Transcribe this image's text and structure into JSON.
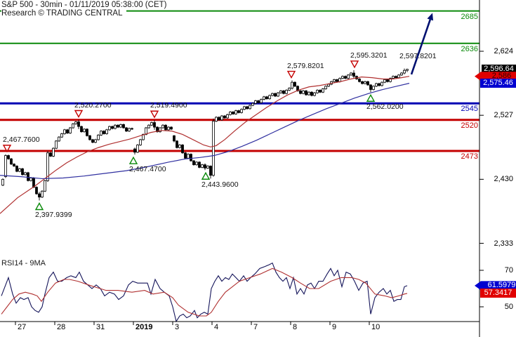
{
  "header": {
    "title": "S&P 500 - 30min - 01/11/2019 05:38:00 (CET)",
    "watermark": "Research © TRADING CENTRAL"
  },
  "rsi": {
    "title": "RSI14 - 9MA"
  },
  "colors": {
    "resistance_green": "#0b8a0b",
    "pivot_blue": "#0000b4",
    "support_red": "#c40000",
    "ma_fast_red": "#b03030",
    "ma_slow_blue": "#3030a0",
    "rsi_line_navy": "#14145a",
    "rsi_ma_red": "#b03030",
    "arrow_navy": "#001070",
    "candle_up_fill": "#ffffff",
    "candle_down_fill": "#000000",
    "badge_black": "#000000",
    "badge_red": "#e00000",
    "badge_blue": "#0000d0"
  },
  "axis": {
    "y_ticks": [
      {
        "label": "2,624",
        "value": 2624
      },
      {
        "label": "2,527",
        "value": 2527
      },
      {
        "label": "2,430",
        "value": 2430
      },
      {
        "label": "2,333",
        "value": 2333
      }
    ],
    "rsi_ticks": [
      {
        "label": "70",
        "value": 70
      },
      {
        "label": "50",
        "value": 50
      }
    ],
    "x_ticks": [
      {
        "label": "27",
        "x": 22
      },
      {
        "label": "28",
        "x": 78
      },
      {
        "label": "31",
        "x": 134
      },
      {
        "label": "2019",
        "x": 190,
        "bold": true
      },
      {
        "label": "3",
        "x": 246
      },
      {
        "label": "4",
        "x": 302
      },
      {
        "label": "7",
        "x": 358
      },
      {
        "label": "8",
        "x": 414
      },
      {
        "label": "9",
        "x": 470
      },
      {
        "label": "10",
        "x": 526
      }
    ]
  },
  "badges": {
    "price": [
      {
        "name": "last-price",
        "label": "2,596.64",
        "value": 2596.64,
        "bg": "#000000",
        "fg": "#ffffff",
        "pointer": false
      },
      {
        "name": "fast-ma-price",
        "label": "2,586",
        "value": 2586,
        "bg": "#e00000",
        "fg": "#2a0000",
        "pointer": true
      },
      {
        "name": "slow-ma-price",
        "label": "2,575.46",
        "value": 2575.46,
        "bg": "#0000d0",
        "fg": "#ffffff",
        "pointer": false
      }
    ],
    "rsi": [
      {
        "name": "rsi-value",
        "label": "61.5979",
        "value": 61.5979,
        "bg": "#0000d0",
        "fg": "#ffffff",
        "pointer": true
      },
      {
        "name": "rsi-ma-value",
        "label": "57.3417",
        "value": 57.3417,
        "bg": "#e00000",
        "fg": "#ffffff",
        "pointer": false
      }
    ]
  },
  "chart_data": {
    "type": "candlestick",
    "instrument": "S&P 500",
    "timeframe": "30min",
    "timestamp": "01/11/2019 05:38:00 (CET)",
    "price_axis": {
      "ticks": [
        2624,
        2527,
        2430,
        2333
      ],
      "visible_range": [
        2330,
        2700
      ]
    },
    "levels": [
      {
        "price": 2685,
        "label": "2685",
        "color": "#0b8a0b",
        "width": 2,
        "role": "resistance"
      },
      {
        "price": 2636,
        "label": "2636",
        "color": "#0b8a0b",
        "width": 2,
        "role": "resistance"
      },
      {
        "price": 2545,
        "label": "2545",
        "color": "#0000b4",
        "width": 3,
        "role": "pivot"
      },
      {
        "price": 2520,
        "label": "2520",
        "color": "#c40000",
        "width": 3,
        "role": "support"
      },
      {
        "price": 2473,
        "label": "2473",
        "color": "#c40000",
        "width": 3,
        "role": "support"
      }
    ],
    "candles": {
      "x0": 4,
      "pitch": 4,
      "first_open": 2421,
      "closes": [
        2430,
        2466,
        2461,
        2453,
        2450,
        2442,
        2446,
        2437,
        2440,
        2428,
        2432,
        2418,
        2408,
        2403,
        2412,
        2428,
        2470,
        2465,
        2477,
        2488,
        2494,
        2499,
        2505,
        2500,
        2508,
        2514,
        2517,
        2510,
        2502,
        2506,
        2496,
        2490,
        2486,
        2490,
        2497,
        2503,
        2499,
        2505,
        2510,
        2507,
        2512,
        2509,
        2513,
        2508,
        2503,
        2507,
        2506,
        2471,
        2482,
        2490,
        2498,
        2508,
        2512,
        2516,
        2509,
        2502,
        2508,
        2512,
        2505,
        2509,
        2506,
        2488,
        2478,
        2482,
        2470,
        2462,
        2468,
        2458,
        2452,
        2456,
        2448,
        2452,
        2447,
        2450,
        2436,
        2518,
        2524,
        2520,
        2526,
        2523,
        2528,
        2532,
        2529,
        2534,
        2531,
        2536,
        2540,
        2537,
        2542,
        2545,
        2549,
        2546,
        2551,
        2555,
        2552,
        2557,
        2560,
        2556,
        2561,
        2564,
        2560,
        2565,
        2568,
        2577,
        2571,
        2564,
        2560,
        2564,
        2558,
        2562,
        2557,
        2561,
        2565,
        2562,
        2567,
        2571,
        2574,
        2578,
        2581,
        2578,
        2583,
        2586,
        2583,
        2588,
        2591,
        2586,
        2582,
        2578,
        2575,
        2578,
        2573,
        2566,
        2571,
        2575,
        2572,
        2577,
        2581,
        2578,
        2583,
        2586,
        2584,
        2588,
        2591,
        2595,
        2596.64
      ],
      "special": {
        "1": [
          2434,
          2467.76,
          2432,
          2466
        ],
        "13": [
          2408,
          2411,
          2397.94,
          2403
        ],
        "16": [
          2428,
          2473,
          2426,
          2470
        ],
        "27": [
          2517,
          2520.27,
          2506,
          2510
        ],
        "47": [
          2476,
          2478,
          2467.47,
          2471
        ],
        "54": [
          2516,
          2519.49,
          2505,
          2509
        ],
        "61": [
          2496,
          2497,
          2486,
          2488
        ],
        "72": [
          2452,
          2454,
          2443.96,
          2447
        ],
        "74": [
          2450,
          2451,
          2431,
          2436
        ],
        "75": [
          2436,
          2522,
          2434,
          2518
        ],
        "103": [
          2568,
          2579.82,
          2566,
          2577
        ],
        "125": [
          2591,
          2595.32,
          2583,
          2586
        ],
        "131": [
          2573,
          2574,
          2562.02,
          2566
        ],
        "143": [
          2591,
          2597.82,
          2589,
          2595
        ],
        "144": [
          2595,
          2597.5,
          2592.5,
          2596.64
        ]
      }
    },
    "ma_fast": [
      [
        0,
        2378
      ],
      [
        25,
        2402
      ],
      [
        50,
        2420
      ],
      [
        65,
        2432
      ],
      [
        80,
        2444
      ],
      [
        95,
        2455
      ],
      [
        110,
        2464
      ],
      [
        125,
        2472
      ],
      [
        140,
        2478
      ],
      [
        155,
        2483
      ],
      [
        170,
        2487
      ],
      [
        185,
        2491
      ],
      [
        200,
        2496
      ],
      [
        215,
        2501
      ],
      [
        230,
        2504
      ],
      [
        245,
        2503
      ],
      [
        260,
        2498
      ],
      [
        275,
        2490
      ],
      [
        290,
        2482
      ],
      [
        300,
        2479
      ],
      [
        308,
        2481
      ],
      [
        320,
        2490
      ],
      [
        335,
        2504
      ],
      [
        350,
        2517
      ],
      [
        365,
        2528
      ],
      [
        380,
        2539
      ],
      [
        395,
        2549
      ],
      [
        410,
        2558
      ],
      [
        425,
        2565
      ],
      [
        440,
        2570
      ],
      [
        455,
        2572
      ],
      [
        470,
        2575
      ],
      [
        485,
        2578
      ],
      [
        500,
        2582
      ],
      [
        515,
        2585
      ],
      [
        530,
        2584
      ],
      [
        545,
        2582
      ],
      [
        560,
        2582
      ],
      [
        572,
        2584
      ],
      [
        583,
        2586
      ]
    ],
    "ma_slow": [
      [
        0,
        2436
      ],
      [
        30,
        2434
      ],
      [
        60,
        2431
      ],
      [
        90,
        2432
      ],
      [
        120,
        2435
      ],
      [
        150,
        2439
      ],
      [
        180,
        2443
      ],
      [
        210,
        2449
      ],
      [
        240,
        2456
      ],
      [
        265,
        2461
      ],
      [
        285,
        2463
      ],
      [
        305,
        2466
      ],
      [
        325,
        2472
      ],
      [
        345,
        2480
      ],
      [
        365,
        2489
      ],
      [
        385,
        2499
      ],
      [
        405,
        2509
      ],
      [
        425,
        2519
      ],
      [
        445,
        2528
      ],
      [
        465,
        2537
      ],
      [
        485,
        2545
      ],
      [
        505,
        2553
      ],
      [
        525,
        2560
      ],
      [
        545,
        2566
      ],
      [
        565,
        2571
      ],
      [
        583,
        2575.46
      ]
    ],
    "markers": [
      {
        "label": "2,467.7600",
        "x": 10,
        "price": 2467.76,
        "dir": "down"
      },
      {
        "label": "2,520.2700",
        "x": 112,
        "price": 2520.27,
        "dir": "down"
      },
      {
        "label": "2,519.4900",
        "x": 220,
        "price": 2519.49,
        "dir": "down"
      },
      {
        "label": "2,579.8201",
        "x": 415,
        "price": 2579.82,
        "dir": "down"
      },
      {
        "label": "2,595.3201",
        "x": 505,
        "price": 2595.32,
        "dir": "down"
      },
      {
        "label": "2,397.9399",
        "x": 56,
        "price": 2397.94,
        "dir": "up"
      },
      {
        "label": "2,467.4700",
        "x": 190,
        "price": 2467.47,
        "dir": "up"
      },
      {
        "label": "2,443.9600",
        "x": 293,
        "price": 2443.96,
        "dir": "up"
      },
      {
        "label": "2,562.0200",
        "x": 528,
        "price": 2562.02,
        "dir": "up"
      },
      {
        "label": "2,597.8201",
        "x": 575,
        "price": 2597.82,
        "dir": "label"
      }
    ],
    "forecast_arrow": {
      "from": {
        "x": 586,
        "price": 2589
      },
      "to": {
        "x": 616,
        "price": 2682
      }
    },
    "rsi_pane": {
      "last": 61.5979,
      "ma_last": 57.3417,
      "line": [
        [
          2,
          56
        ],
        [
          8,
          62
        ],
        [
          12,
          66
        ],
        [
          18,
          57
        ],
        [
          23,
          52
        ],
        [
          29,
          55
        ],
        [
          34,
          54
        ],
        [
          40,
          55
        ],
        [
          45,
          50
        ],
        [
          50,
          48
        ],
        [
          55,
          47
        ],
        [
          60,
          50
        ],
        [
          64,
          57
        ],
        [
          70,
          66
        ],
        [
          76,
          69
        ],
        [
          82,
          64
        ],
        [
          88,
          64
        ],
        [
          95,
          66
        ],
        [
          101,
          67
        ],
        [
          108,
          66
        ],
        [
          113,
          69
        ],
        [
          119,
          64
        ],
        [
          125,
          62
        ],
        [
          131,
          60
        ],
        [
          137,
          62
        ],
        [
          143,
          60
        ],
        [
          149,
          56
        ],
        [
          156,
          58
        ],
        [
          163,
          57
        ],
        [
          169,
          54
        ],
        [
          176,
          56
        ],
        [
          183,
          62
        ],
        [
          189,
          64
        ],
        [
          196,
          63
        ],
        [
          203,
          63
        ],
        [
          210,
          63
        ],
        [
          215,
          57
        ],
        [
          221,
          65
        ],
        [
          228,
          60
        ],
        [
          234,
          58
        ],
        [
          241,
          56
        ],
        [
          246,
          50
        ],
        [
          251,
          42
        ],
        [
          256,
          45
        ],
        [
          261,
          46
        ],
        [
          266,
          44
        ],
        [
          271,
          45
        ],
        [
          277,
          48
        ],
        [
          281,
          44
        ],
        [
          286,
          46
        ],
        [
          291,
          47
        ],
        [
          296,
          46
        ],
        [
          301,
          60
        ],
        [
          306,
          64
        ],
        [
          311,
          67
        ],
        [
          316,
          64
        ],
        [
          321,
          66
        ],
        [
          326,
          65
        ],
        [
          331,
          68
        ],
        [
          336,
          66
        ],
        [
          341,
          64
        ],
        [
          347,
          67
        ],
        [
          352,
          64
        ],
        [
          357,
          66
        ],
        [
          363,
          68
        ],
        [
          370,
          71
        ],
        [
          377,
          72
        ],
        [
          383,
          73
        ],
        [
          388,
          74
        ],
        [
          393,
          69
        ],
        [
          398,
          66
        ],
        [
          403,
          64
        ],
        [
          408,
          66
        ],
        [
          413,
          60
        ],
        [
          418,
          66
        ],
        [
          423,
          57
        ],
        [
          428,
          60
        ],
        [
          433,
          57
        ],
        [
          438,
          62
        ],
        [
          443,
          63
        ],
        [
          448,
          60
        ],
        [
          454,
          64
        ],
        [
          460,
          64
        ],
        [
          466,
          68
        ],
        [
          471,
          71
        ],
        [
          476,
          67
        ],
        [
          481,
          70
        ],
        [
          487,
          61
        ],
        [
          493,
          69
        ],
        [
          499,
          68
        ],
        [
          505,
          64
        ],
        [
          511,
          59
        ],
        [
          517,
          63
        ],
        [
          523,
          64
        ],
        [
          528,
          46
        ],
        [
          534,
          55
        ],
        [
          540,
          58
        ],
        [
          546,
          60
        ],
        [
          551,
          57
        ],
        [
          556,
          59
        ],
        [
          561,
          53
        ],
        [
          566,
          54
        ],
        [
          571,
          54
        ],
        [
          576,
          61
        ],
        [
          580,
          61.6
        ]
      ],
      "ma": [
        [
          2,
          46
        ],
        [
          10,
          50
        ],
        [
          18,
          54
        ],
        [
          27,
          57
        ],
        [
          36,
          58
        ],
        [
          46,
          57
        ],
        [
          53,
          56
        ],
        [
          59,
          53
        ],
        [
          68,
          58
        ],
        [
          79,
          63
        ],
        [
          91,
          65
        ],
        [
          99,
          65
        ],
        [
          111,
          64
        ],
        [
          126,
          62
        ],
        [
          134,
          61
        ],
        [
          151,
          59
        ],
        [
          168,
          59
        ],
        [
          188,
          58
        ],
        [
          206,
          59
        ],
        [
          218,
          57
        ],
        [
          234,
          58
        ],
        [
          246,
          55
        ],
        [
          254,
          51
        ],
        [
          268,
          47
        ],
        [
          284,
          45
        ],
        [
          294,
          45
        ],
        [
          301,
          47
        ],
        [
          311,
          53
        ],
        [
          321,
          58
        ],
        [
          331,
          61
        ],
        [
          341,
          64
        ],
        [
          356,
          66
        ],
        [
          371,
          68
        ],
        [
          388,
          71
        ],
        [
          401,
          69
        ],
        [
          416,
          66
        ],
        [
          428,
          63
        ],
        [
          441,
          60
        ],
        [
          454,
          60
        ],
        [
          471,
          64
        ],
        [
          486,
          66
        ],
        [
          501,
          66
        ],
        [
          511,
          65
        ],
        [
          521,
          63
        ],
        [
          534,
          57
        ],
        [
          548,
          56
        ],
        [
          558,
          55
        ],
        [
          568,
          56
        ],
        [
          576,
          57
        ],
        [
          580,
          57.34
        ]
      ]
    }
  }
}
